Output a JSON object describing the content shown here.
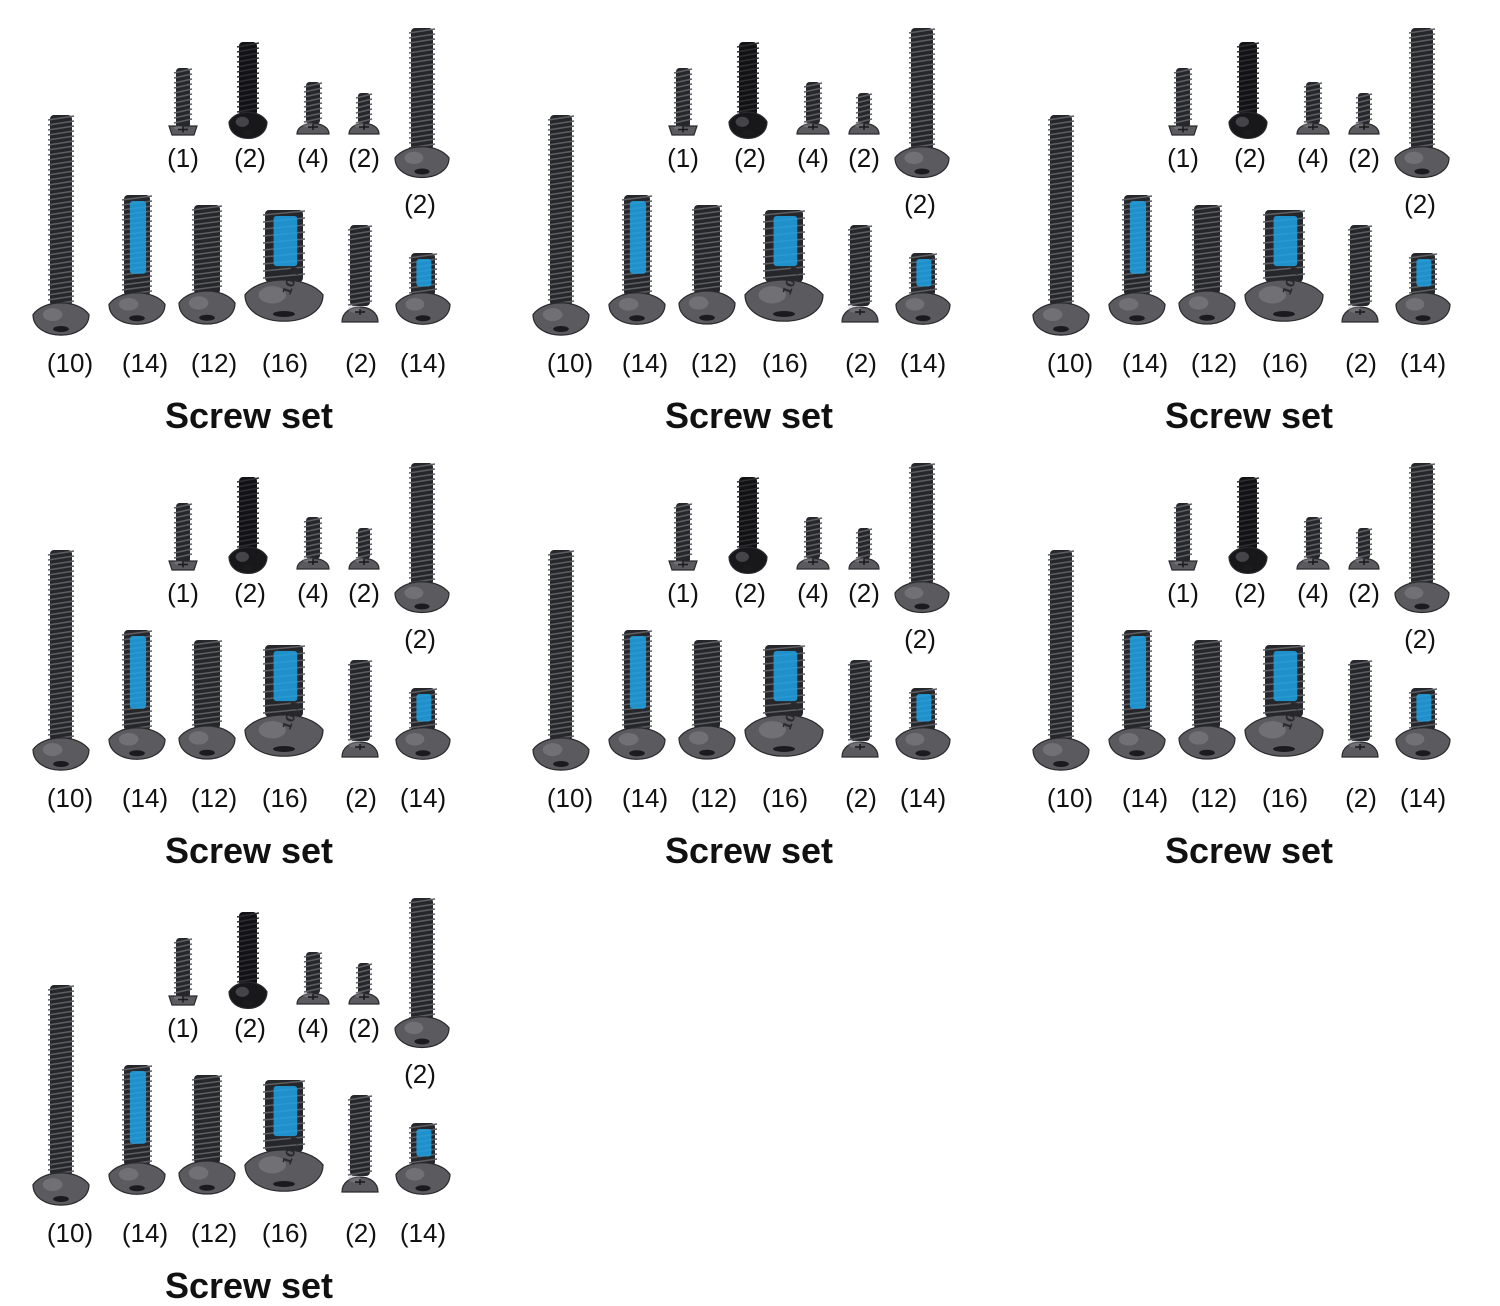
{
  "colors": {
    "background": "#ffffff",
    "screw_dark": "#26272b",
    "screw_head": "#5b5a5e",
    "thread_lock_blue": "#1ea3e6",
    "label_text": "#111111"
  },
  "panels": [
    {
      "title": "Screw set",
      "head_marking": "10.9",
      "top_row_counts": [
        "(1)",
        "(2)",
        "(4)",
        "(2)",
        "(2)"
      ],
      "bottom_row_counts": [
        "(10)",
        "(14)",
        "(12)",
        "(16)",
        "(2)",
        "(14)"
      ]
    },
    {
      "title": "Screw set",
      "head_marking": "10.9",
      "top_row_counts": [
        "(1)",
        "(2)",
        "(4)",
        "(2)",
        "(2)"
      ],
      "bottom_row_counts": [
        "(10)",
        "(14)",
        "(12)",
        "(16)",
        "(2)",
        "(14)"
      ]
    },
    {
      "title": "Screw set",
      "head_marking": "10.9",
      "top_row_counts": [
        "(1)",
        "(2)",
        "(4)",
        "(2)",
        "(2)"
      ],
      "bottom_row_counts": [
        "(10)",
        "(14)",
        "(12)",
        "(16)",
        "(2)",
        "(14)"
      ]
    },
    {
      "title": "Screw set",
      "head_marking": "10.9",
      "top_row_counts": [
        "(1)",
        "(2)",
        "(4)",
        "(2)",
        "(2)"
      ],
      "bottom_row_counts": [
        "(10)",
        "(14)",
        "(12)",
        "(16)",
        "(2)",
        "(14)"
      ]
    },
    {
      "title": "Screw set",
      "head_marking": "10.9",
      "top_row_counts": [
        "(1)",
        "(2)",
        "(4)",
        "(2)",
        "(2)"
      ],
      "bottom_row_counts": [
        "(10)",
        "(14)",
        "(12)",
        "(16)",
        "(2)",
        "(14)"
      ]
    },
    {
      "title": "Screw set",
      "head_marking": "10.9",
      "top_row_counts": [
        "(1)",
        "(2)",
        "(4)",
        "(2)",
        "(2)"
      ],
      "bottom_row_counts": [
        "(10)",
        "(14)",
        "(12)",
        "(16)",
        "(2)",
        "(14)"
      ]
    },
    {
      "title": "Screw set",
      "head_marking": "10.9",
      "top_row_counts": [
        "(1)",
        "(2)",
        "(4)",
        "(2)",
        "(2)"
      ],
      "bottom_row_counts": [
        "(10)",
        "(14)",
        "(12)",
        "(16)",
        "(2)",
        "(14)"
      ]
    }
  ]
}
